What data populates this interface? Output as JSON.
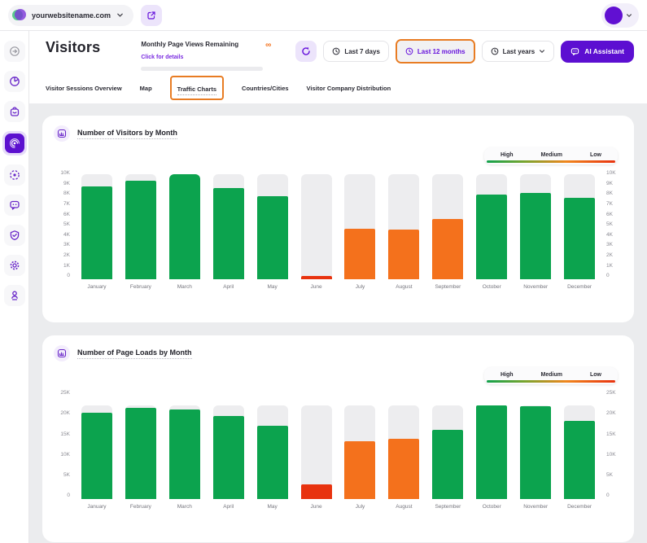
{
  "topbar": {
    "website": "yourwebsitename.com",
    "icons": [
      "site-favicon-icon",
      "chevron-down-icon",
      "external-link-icon",
      "avatar",
      "chevron-down-icon"
    ]
  },
  "sidebar": {
    "items": [
      "collapse-sidebar-icon",
      "analytics-pie-icon",
      "ecommerce-bag-icon",
      "visitors-radar-icon",
      "campaigns-target-icon",
      "feedback-chat-icon",
      "privacy-shield-icon",
      "settings-gear-icon",
      "support-person-pin-icon"
    ],
    "active_item": "visitors-radar-icon"
  },
  "header": {
    "title": "Visitors",
    "quota": {
      "label": "Monthly Page Views Remaining",
      "link": "Click for details",
      "value": "∞"
    },
    "buttons": {
      "last7": "Last 7 days",
      "last12": "Last 12 months",
      "lastyears": "Last years",
      "ai": "AI Assistant"
    }
  },
  "tabs": {
    "items": [
      "Visitor Sessions Overview",
      "Map",
      "Traffic Charts",
      "Countries/Cities",
      "Visitor Company Distribution"
    ],
    "active": "Traffic Charts"
  },
  "legend": {
    "high": "High",
    "medium": "Medium",
    "low": "Low"
  },
  "colors": {
    "high": "#0ca34e",
    "medium": "#f4711c",
    "low": "#e8330f",
    "accent_purple": "#5c0fd1",
    "annotation_orange": "#e87c23",
    "track_gray": "#ededef"
  },
  "chart_data": [
    {
      "type": "bar",
      "title": "Number of Visitors by Month",
      "categories": [
        "January",
        "February",
        "March",
        "April",
        "May",
        "June",
        "July",
        "August",
        "September",
        "October",
        "November",
        "December"
      ],
      "values": [
        8600,
        9100,
        9700,
        8400,
        7700,
        300,
        4700,
        4600,
        5600,
        7800,
        8000,
        7500
      ],
      "statuses": [
        "high",
        "high",
        "high",
        "high",
        "high",
        "low",
        "medium",
        "medium",
        "medium",
        "high",
        "high",
        "high"
      ],
      "ylim": [
        0,
        10000
      ],
      "yticks": [
        "10K",
        "9K",
        "8K",
        "7K",
        "6K",
        "5K",
        "4K",
        "3K",
        "2K",
        "1K",
        "0"
      ],
      "track_max": 9700,
      "grid": false,
      "legend_entries": [
        "High",
        "Medium",
        "Low"
      ],
      "legend_position": "top-right",
      "xlabel": "",
      "ylabel": ""
    },
    {
      "type": "bar",
      "title": "Number of Page Loads by Month",
      "categories": [
        "January",
        "February",
        "March",
        "April",
        "May",
        "June",
        "July",
        "August",
        "September",
        "October",
        "November",
        "December"
      ],
      "values": [
        20000,
        21100,
        20700,
        19100,
        17000,
        3300,
        13300,
        14000,
        15900,
        21600,
        21400,
        18000
      ],
      "statuses": [
        "high",
        "high",
        "high",
        "high",
        "high",
        "low",
        "medium",
        "medium",
        "high",
        "high",
        "high",
        "high"
      ],
      "ylim": [
        0,
        25000
      ],
      "yticks": [
        "25K",
        "20K",
        "15K",
        "10K",
        "5K",
        "0"
      ],
      "track_max": 21700,
      "grid": false,
      "legend_entries": [
        "High",
        "Medium",
        "Low"
      ],
      "legend_position": "top-right",
      "xlabel": "",
      "ylabel": ""
    }
  ]
}
